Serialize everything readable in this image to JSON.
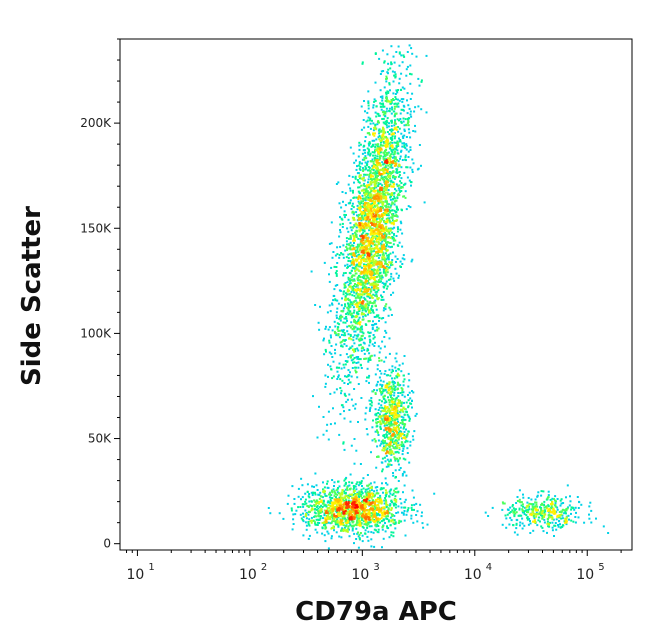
{
  "chart_data": {
    "type": "scatter",
    "xlabel": "CD79a APC",
    "ylabel": "Side Scatter",
    "x_scale": "log",
    "xlim": [
      7,
      250000
    ],
    "ylim": [
      -3000,
      240000
    ],
    "x_tick_values": [
      10,
      100,
      1000,
      10000,
      100000
    ],
    "x_tick_labels": [
      {
        "base": "10",
        "exp": "1"
      },
      {
        "base": "10",
        "exp": "2"
      },
      {
        "base": "10",
        "exp": "3"
      },
      {
        "base": "10",
        "exp": "4"
      },
      {
        "base": "10",
        "exp": "5"
      }
    ],
    "y_tick_values": [
      0,
      50000,
      100000,
      150000,
      200000
    ],
    "y_tick_labels": [
      "0",
      "50K",
      "100K",
      "150K",
      "200K"
    ],
    "grid": false,
    "color_scale": [
      "#0000ff",
      "#00c8ff",
      "#00ff80",
      "#ffff00",
      "#ff8000",
      "#ff0000"
    ],
    "populations": [
      {
        "center_x": 1200,
        "center_y": 150000,
        "spread_x_log10": 0.12,
        "spread_y": 35000,
        "tilt_log10_per_100k": 0.28,
        "count": 3200
      },
      {
        "center_x": 1800,
        "center_y": 60000,
        "spread_x_log10": 0.08,
        "spread_y": 12000,
        "tilt_log10_per_100k": 0.0,
        "count": 700
      },
      {
        "center_x": 800,
        "center_y": 17000,
        "spread_x_log10": 0.22,
        "spread_y": 6000,
        "tilt_log10_per_100k": 0.0,
        "count": 1400
      },
      {
        "center_x": 40000,
        "center_y": 15000,
        "spread_x_log10": 0.18,
        "spread_y": 4000,
        "tilt_log10_per_100k": 0.0,
        "count": 380
      }
    ]
  }
}
